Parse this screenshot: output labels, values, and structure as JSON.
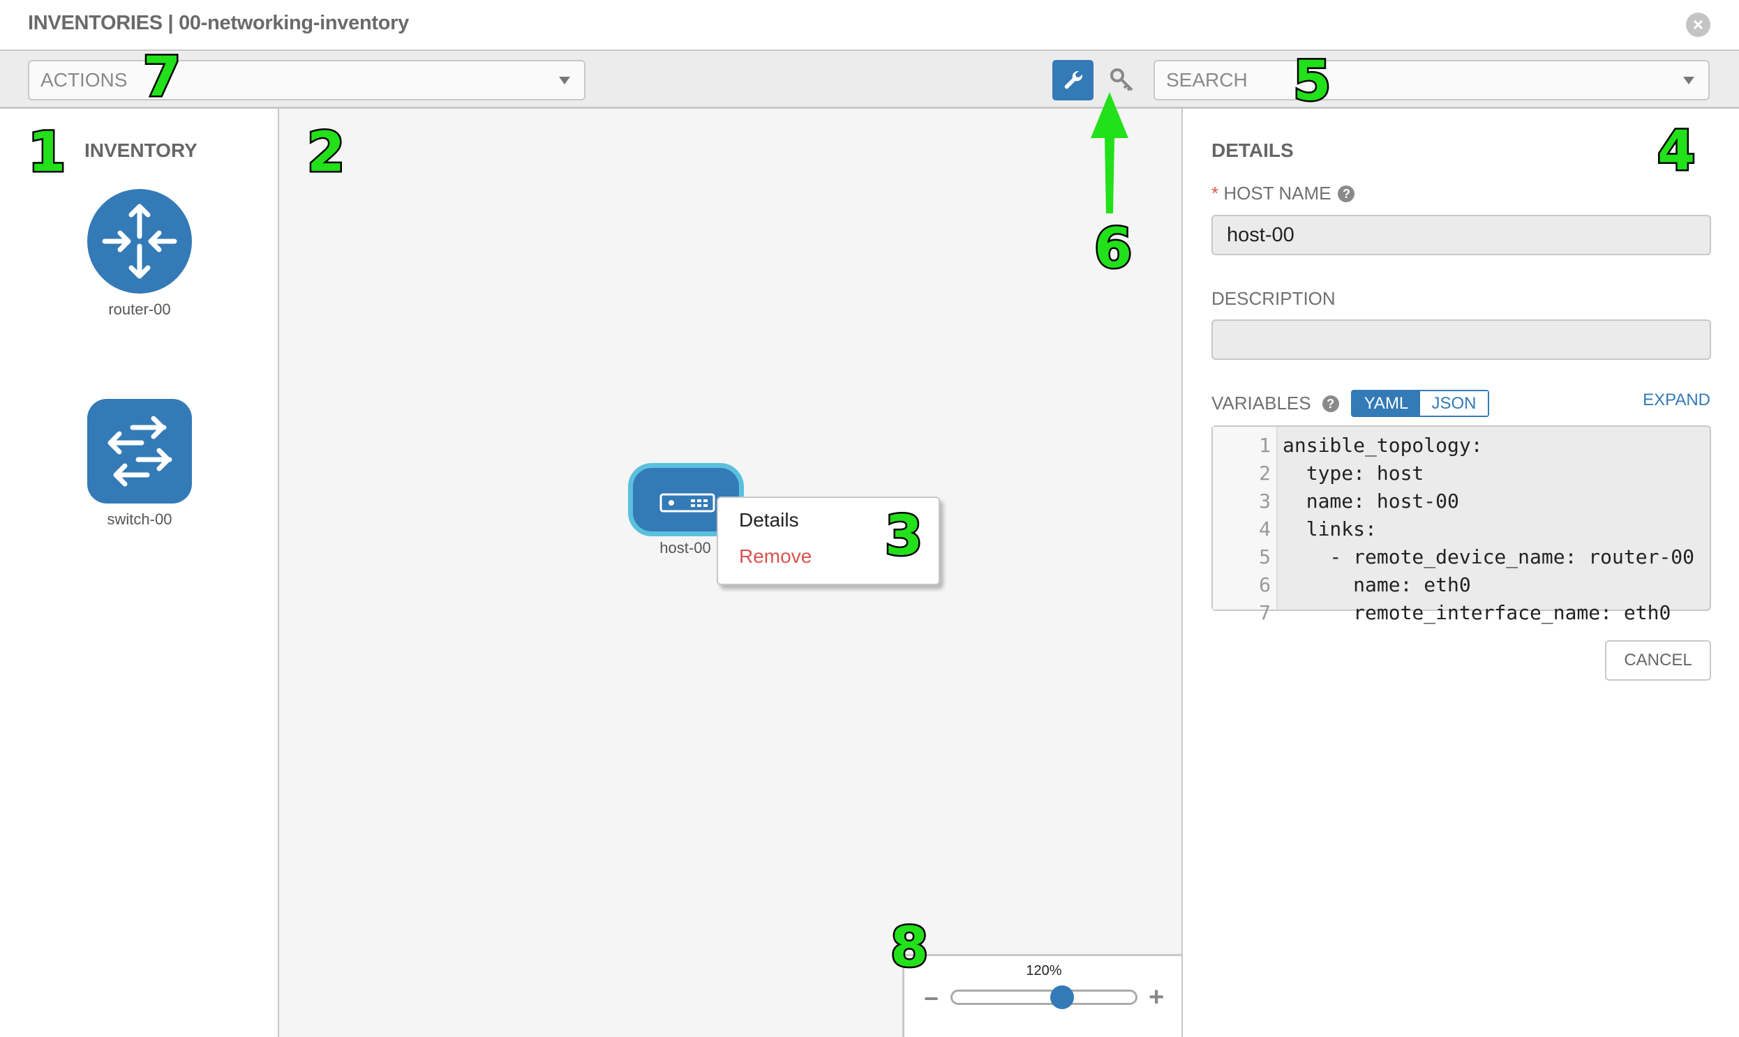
{
  "header": {
    "title": "INVENTORIES | 00-networking-inventory",
    "close_icon": "close-circle-icon"
  },
  "toolbar": {
    "actions_placeholder": "ACTIONS",
    "search_placeholder": "SEARCH",
    "wrench_icon": "wrench-icon",
    "key_icon": "key-icon",
    "accent": "#337ab7"
  },
  "inventory": {
    "title": "INVENTORY",
    "items": [
      {
        "label": "router-00",
        "icon": "router-icon"
      },
      {
        "label": "switch-00",
        "icon": "switch-icon"
      }
    ]
  },
  "canvas": {
    "host": {
      "label": "host-00",
      "icon": "server-icon"
    },
    "context_menu": {
      "details": "Details",
      "remove": "Remove"
    }
  },
  "zoom": {
    "level_label": "120%",
    "value_percent": 120,
    "minus": "−",
    "plus": "+"
  },
  "details": {
    "title": "DETAILS",
    "host_name_label": "HOST NAME",
    "required_mark": "*",
    "host_name_value": "host-00",
    "description_label": "DESCRIPTION",
    "description_value": "",
    "variables_label": "VARIABLES",
    "yaml": "YAML",
    "json": "JSON",
    "expand": "EXPAND",
    "code_lines": [
      "ansible_topology:",
      "  type: host",
      "  name: host-00",
      "  links:",
      "    - remote_device_name: router-00",
      "      name: eth0",
      "      remote_interface_name: eth0"
    ],
    "line_numbers": [
      "1",
      "2",
      "3",
      "4",
      "5",
      "6",
      "7"
    ],
    "cancel": "CANCEL"
  },
  "annotations": [
    "1",
    "2",
    "3",
    "4",
    "5",
    "6",
    "7",
    "8"
  ]
}
